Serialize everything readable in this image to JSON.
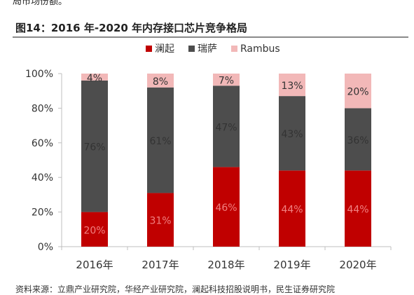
{
  "header": {
    "top_fragment": "局市场份额。",
    "figure_title": "图14：2016 年-2020 年内存接口芯片竞争格局"
  },
  "footer": {
    "source": "资料来源：立鼎产业研究院，华经产业研究院，澜起科技招股说明书，民生证券研究院"
  },
  "colors": {
    "澜起": "#c00000",
    "瑞萨": "#4d4d4d",
    "Rambus": "#f2b8b8",
    "axis": "#bfbfbf",
    "text": "#333333"
  },
  "chart_data": {
    "type": "bar",
    "stacked": true,
    "categories": [
      "2016年",
      "2017年",
      "2018年",
      "2019年",
      "2020年"
    ],
    "series": [
      {
        "name": "澜起",
        "values": [
          20,
          31,
          46,
          44,
          44
        ],
        "labels": [
          "20%",
          "31%",
          "46%",
          "44%",
          "44%"
        ]
      },
      {
        "name": "瑞萨",
        "values": [
          76,
          61,
          47,
          43,
          36
        ],
        "labels": [
          "76%",
          "61%",
          "47%",
          "43%",
          "36%"
        ]
      },
      {
        "name": "Rambus",
        "values": [
          4,
          8,
          7,
          13,
          20
        ],
        "labels": [
          "4%",
          "8%",
          "7%",
          "13%",
          "20%"
        ]
      }
    ],
    "y_ticks": [
      "0%",
      "20%",
      "40%",
      "60%",
      "80%",
      "100%"
    ],
    "ylim": [
      0,
      100
    ],
    "grid": false,
    "legend_position": "top"
  }
}
